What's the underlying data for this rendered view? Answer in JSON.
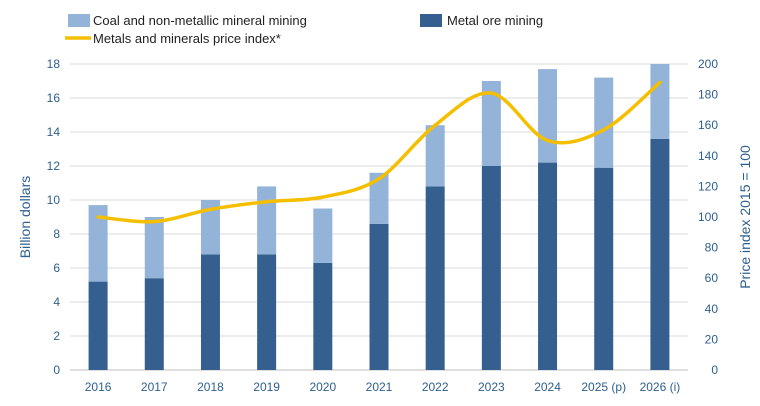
{
  "chart_data": {
    "type": "bar",
    "stacked": true,
    "categories": [
      "2016",
      "2017",
      "2018",
      "2019",
      "2020",
      "2021",
      "2022",
      "2023",
      "2024",
      "2025 (p)",
      "2026 (i)"
    ],
    "series": [
      {
        "name": "Metal ore mining",
        "type": "bar",
        "axis": "left",
        "color": "#355f8f",
        "values": [
          5.2,
          5.4,
          6.8,
          6.8,
          6.3,
          8.6,
          10.8,
          12.0,
          12.2,
          11.9,
          13.6
        ]
      },
      {
        "name": "Coal and non-metallic mineral mining",
        "type": "bar",
        "axis": "left",
        "color": "#93b3d9",
        "values": [
          4.5,
          3.6,
          3.2,
          4.0,
          3.2,
          3.0,
          3.6,
          5.0,
          5.5,
          5.3,
          4.4
        ]
      },
      {
        "name": "Metals and minerals price index*",
        "type": "line",
        "axis": "right",
        "color": "#f5bf00",
        "values": [
          100,
          97,
          105,
          110,
          113,
          125,
          160,
          181,
          150,
          157,
          188
        ]
      }
    ],
    "ylabel": "Billion dollars",
    "y2label": "Price index 2015 = 100",
    "ylim": [
      0,
      18
    ],
    "yticks": [
      0,
      2,
      4,
      6,
      8,
      10,
      12,
      14,
      16,
      18
    ],
    "y2lim": [
      0,
      200
    ],
    "y2ticks": [
      0,
      20,
      40,
      60,
      80,
      100,
      120,
      140,
      160,
      180,
      200
    ],
    "grid": true,
    "legend": "top"
  }
}
